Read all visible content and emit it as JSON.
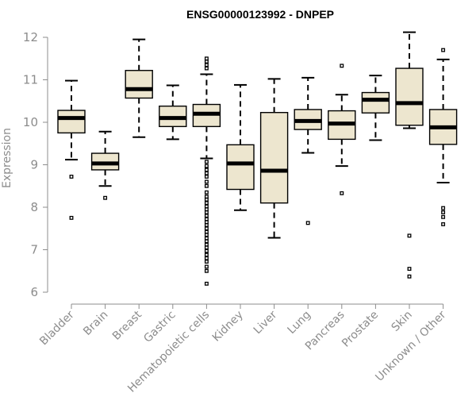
{
  "chart_data": {
    "type": "boxplot",
    "title": "ENSG00000123992 - DNPEP",
    "ylabel": "Expression",
    "xlabel": "",
    "ylim": [
      6,
      12
    ],
    "yticks": [
      6,
      7,
      8,
      9,
      10,
      11,
      12
    ],
    "categories": [
      "Bladder",
      "Brain",
      "Breast",
      "Gastric",
      "Hematopoietic cells",
      "Kidney",
      "Liver",
      "Lung",
      "Pancreas",
      "Prostate",
      "Skin",
      "Unknown / Other"
    ],
    "boxes": [
      {
        "name": "Bladder",
        "whisker_low": 9.12,
        "q1": 9.75,
        "median": 10.1,
        "q3": 10.28,
        "whisker_high": 10.98,
        "outliers": [
          8.72,
          7.75
        ]
      },
      {
        "name": "Brain",
        "whisker_low": 8.5,
        "q1": 8.88,
        "median": 9.03,
        "q3": 9.27,
        "whisker_high": 9.78,
        "outliers": [
          8.22
        ]
      },
      {
        "name": "Breast",
        "whisker_low": 9.65,
        "q1": 10.57,
        "median": 10.78,
        "q3": 11.22,
        "whisker_high": 11.95,
        "outliers": []
      },
      {
        "name": "Gastric",
        "whisker_low": 9.6,
        "q1": 9.9,
        "median": 10.1,
        "q3": 10.38,
        "whisker_high": 10.87,
        "outliers": []
      },
      {
        "name": "Hematopoietic cells",
        "whisker_low": 9.15,
        "q1": 9.9,
        "median": 10.2,
        "q3": 10.42,
        "whisker_high": 11.13,
        "outliers": [
          11.5,
          11.43,
          11.35,
          11.27,
          9.07,
          8.97,
          8.88,
          8.8,
          8.72,
          8.6,
          8.5,
          8.35,
          8.25,
          8.18,
          8.1,
          8.02,
          7.95,
          7.88,
          7.8,
          7.72,
          7.65,
          7.58,
          7.5,
          7.42,
          7.35,
          7.27,
          7.2,
          7.12,
          7.05,
          6.97,
          6.88,
          6.8,
          6.72,
          6.6,
          6.5,
          6.2
        ]
      },
      {
        "name": "Kidney",
        "whisker_low": 7.93,
        "q1": 8.42,
        "median": 9.03,
        "q3": 9.47,
        "whisker_high": 10.88,
        "outliers": []
      },
      {
        "name": "Liver",
        "whisker_low": 7.28,
        "q1": 8.1,
        "median": 8.86,
        "q3": 10.23,
        "whisker_high": 11.02,
        "outliers": []
      },
      {
        "name": "Lung",
        "whisker_low": 9.28,
        "q1": 9.83,
        "median": 10.03,
        "q3": 10.3,
        "whisker_high": 11.05,
        "outliers": [
          7.63
        ]
      },
      {
        "name": "Pancreas",
        "whisker_low": 8.97,
        "q1": 9.6,
        "median": 9.97,
        "q3": 10.27,
        "whisker_high": 10.65,
        "outliers": [
          11.33,
          8.33
        ]
      },
      {
        "name": "Prostate",
        "whisker_low": 9.58,
        "q1": 10.22,
        "median": 10.53,
        "q3": 10.7,
        "whisker_high": 11.1,
        "outliers": []
      },
      {
        "name": "Skin",
        "whisker_low": 9.86,
        "q1": 9.93,
        "median": 10.45,
        "q3": 11.27,
        "whisker_high": 12.12,
        "outliers": [
          7.33,
          6.55,
          6.37
        ]
      },
      {
        "name": "Unknown / Other",
        "whisker_low": 8.58,
        "q1": 9.48,
        "median": 9.88,
        "q3": 10.3,
        "whisker_high": 11.48,
        "outliers": [
          11.7,
          7.98,
          7.88,
          7.77,
          7.6
        ]
      }
    ],
    "colors": {
      "box_fill": "#ede6cf",
      "box_stroke": "#000000",
      "axis": "#8c8c8c",
      "title": "#000000"
    }
  }
}
